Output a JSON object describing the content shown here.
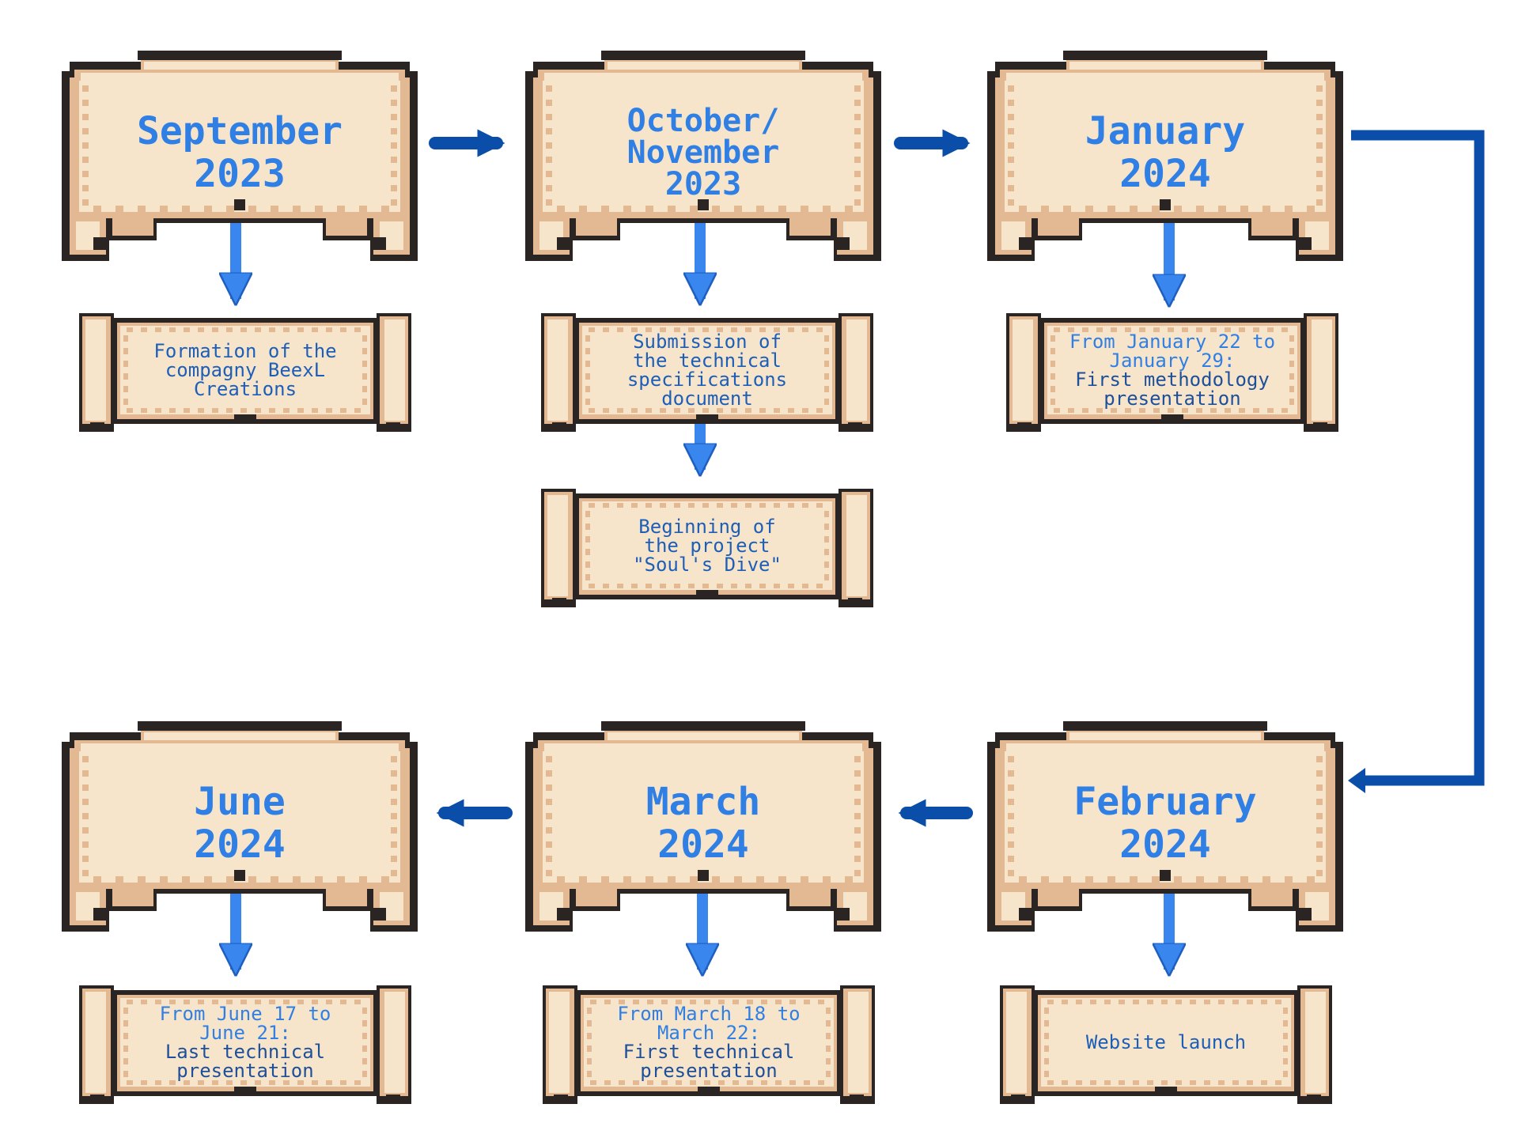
{
  "colors": {
    "paper": "#f7e5cb",
    "paper_shade": "#e2b992",
    "outline": "#2a2422",
    "title_blue": "#2f7fe4",
    "note_blue": "#1d5fb8",
    "arrow_blue": "#3a86ef",
    "connector_blue": "#0a4ea9"
  },
  "milestones": [
    {
      "id": "sep-2023",
      "lines": [
        "September",
        "2023"
      ]
    },
    {
      "id": "oct-nov-2023",
      "lines": [
        "October/",
        "November",
        "2023"
      ]
    },
    {
      "id": "jan-2024",
      "lines": [
        "January",
        "2024"
      ]
    },
    {
      "id": "feb-2024",
      "lines": [
        "February",
        "2024"
      ]
    },
    {
      "id": "mar-2024",
      "lines": [
        "March",
        "2024"
      ]
    },
    {
      "id": "jun-2024",
      "lines": [
        "June",
        "2024"
      ]
    }
  ],
  "events": [
    {
      "id": "company-formation",
      "lines": [
        "Formation of the",
        "compagny BeexL",
        "Creations"
      ]
    },
    {
      "id": "spec-submission",
      "lines": [
        "Submission of",
        "the technical",
        "specifications",
        "document"
      ]
    },
    {
      "id": "project-start",
      "lines": [
        "Beginning of",
        "the project",
        "\"Soul's Dive\""
      ]
    },
    {
      "id": "jan-presentation",
      "lines": [
        "From January 22 to",
        "January 29:",
        "First methodology",
        "presentation"
      ]
    },
    {
      "id": "website-launch",
      "lines": [
        "Website launch"
      ]
    },
    {
      "id": "mar-presentation",
      "lines": [
        "From March 18 to",
        "March 22:",
        "First technical",
        "presentation"
      ]
    },
    {
      "id": "jun-presentation",
      "lines": [
        "From June 17  to",
        "June 21:",
        "Last technical",
        "presentation"
      ]
    }
  ]
}
